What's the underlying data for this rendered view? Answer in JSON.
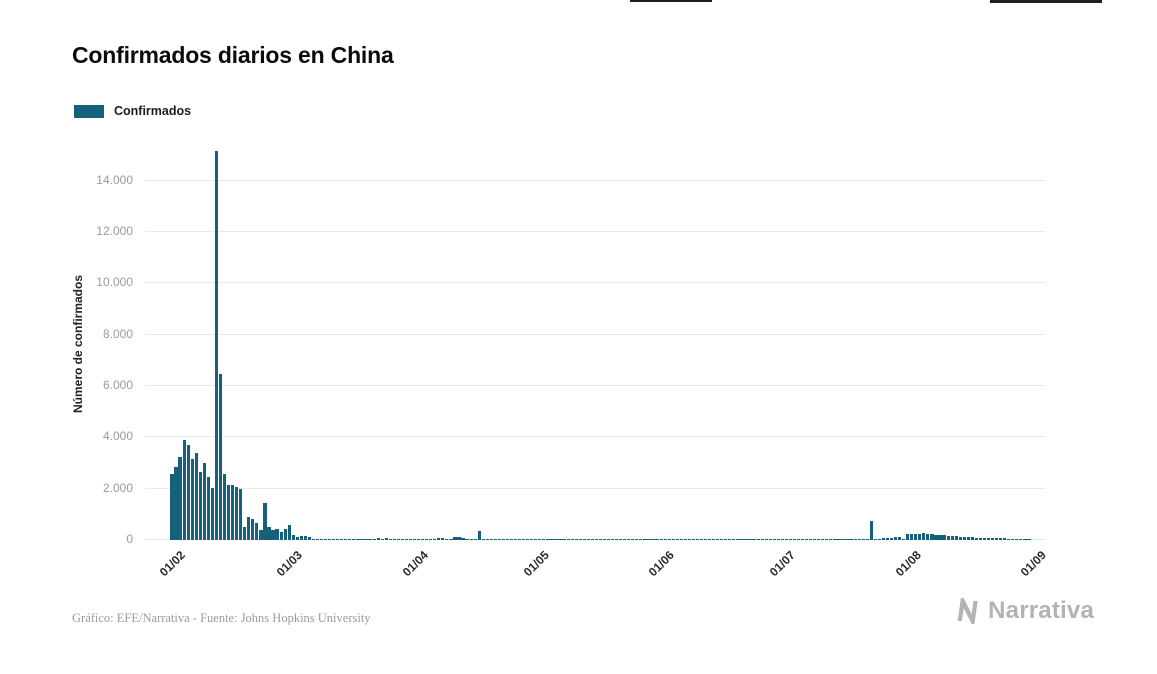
{
  "page": {
    "background": "#ffffff"
  },
  "header": {
    "title": "Confirmados diarios en China"
  },
  "legend": {
    "label": "Confirmados",
    "color": "#15607a"
  },
  "chart_data": {
    "type": "bar",
    "title": "Confirmados diarios en China",
    "xlabel": "",
    "ylabel": "Número de confirmados",
    "grid": "horizontal",
    "legend_position": "top-left",
    "ylim": [
      0,
      15200
    ],
    "y_ticks": [
      {
        "label": "0",
        "value": 0
      },
      {
        "label": "2.000",
        "value": 2000
      },
      {
        "label": "4.000",
        "value": 4000
      },
      {
        "label": "6.000",
        "value": 6000
      },
      {
        "label": "8.000",
        "value": 8000
      },
      {
        "label": "10.000",
        "value": 10000
      },
      {
        "label": "12.000",
        "value": 12000
      },
      {
        "label": "14.000",
        "value": 14000
      }
    ],
    "x_ticks": [
      {
        "label": "01/02",
        "day_offset": 0
      },
      {
        "label": "01/03",
        "day_offset": 29
      },
      {
        "label": "01/04",
        "day_offset": 60
      },
      {
        "label": "01/05",
        "day_offset": 90
      },
      {
        "label": "01/06",
        "day_offset": 121
      },
      {
        "label": "01/07",
        "day_offset": 151
      },
      {
        "label": "01/08",
        "day_offset": 182
      },
      {
        "label": "01/09",
        "day_offset": 213
      }
    ],
    "x": {
      "start_date": "2020-02-01",
      "end_date": "2020-08-31",
      "frequency": "daily"
    },
    "series": [
      {
        "name": "Confirmados",
        "color": "#15607a",
        "values": [
          2590,
          2829,
          3235,
          3887,
          3694,
          3143,
          3385,
          2656,
          2984,
          2473,
          2022,
          15152,
          6463,
          2560,
          2147,
          2162,
          2067,
          1995,
          504,
          893,
          823,
          648,
          409,
          1443,
          508,
          406,
          433,
          327,
          427,
          573,
          202,
          125,
          139,
          143,
          99,
          44,
          40,
          19,
          24,
          15,
          8,
          11,
          20,
          16,
          21,
          13,
          34,
          39,
          41,
          46,
          39,
          78,
          47,
          67,
          55,
          54,
          45,
          31,
          48,
          36,
          35,
          31,
          19,
          30,
          39,
          32,
          62,
          63,
          42,
          46,
          99,
          108,
          89,
          46,
          46,
          26,
          352,
          27,
          16,
          12,
          30,
          10,
          6,
          6,
          11,
          3,
          6,
          22,
          4,
          12,
          1,
          2,
          2,
          3,
          1,
          2,
          1,
          1,
          14,
          17,
          1,
          7,
          4,
          3,
          4,
          5,
          7,
          6,
          5,
          2,
          4,
          2,
          3,
          11,
          7,
          1,
          2,
          2,
          4,
          2,
          16,
          16,
          1,
          1,
          5,
          3,
          5,
          4,
          4,
          3,
          11,
          7,
          11,
          57,
          49,
          40,
          44,
          28,
          32,
          27,
          26,
          18,
          22,
          19,
          13,
          21,
          17,
          21,
          12,
          19,
          3,
          5,
          5,
          3,
          8,
          4,
          8,
          7,
          9,
          4,
          2,
          8,
          8,
          10,
          6,
          6,
          10,
          22,
          16,
          22,
          11,
          14,
          22,
          750,
          34,
          46,
          61,
          68,
          64,
          101,
          127,
          45,
          230,
          250,
          240,
          220,
          260,
          240,
          230,
          210,
          190,
          180,
          160,
          150,
          140,
          130,
          120,
          110,
          100,
          95,
          90,
          85,
          80,
          75,
          70,
          65,
          60,
          55,
          50,
          45,
          40,
          35,
          30
        ]
      }
    ]
  },
  "footer": {
    "credit": "Gráfico: EFE/Narrativa - Fuente: Johns Hopkins University",
    "brand": "Narrativa"
  }
}
